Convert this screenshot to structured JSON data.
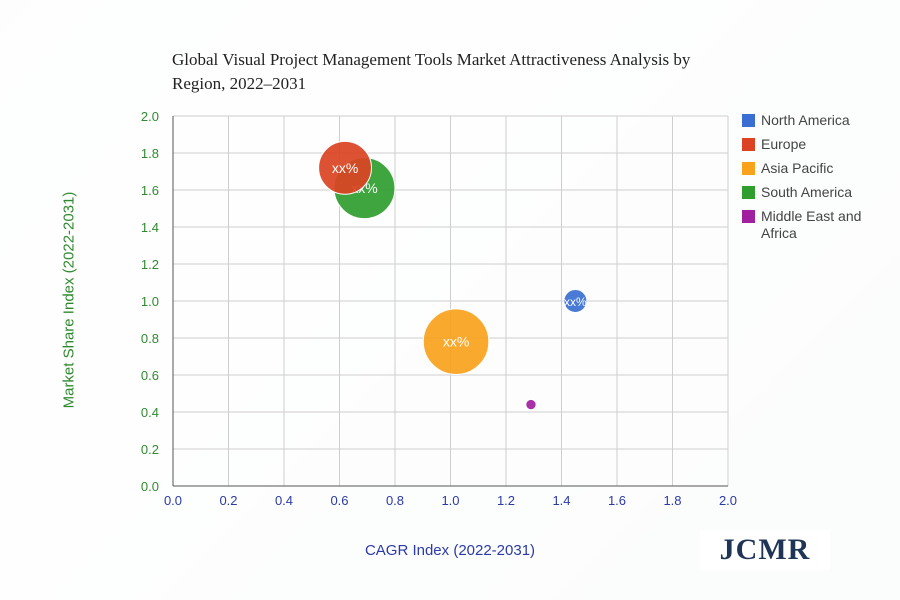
{
  "chart_data": {
    "type": "bubble",
    "title": "Global Visual Project Management Tools Market Attractiveness Analysis by Region, 2022–2031",
    "xlabel": "CAGR Index (2022-2031)",
    "ylabel": "Market Share Index (2022-2031)",
    "xlim": [
      0,
      2
    ],
    "ylim": [
      0,
      2
    ],
    "xticks": [
      "0.0",
      "0.2",
      "0.4",
      "0.6",
      "0.8",
      "1.0",
      "1.2",
      "1.4",
      "1.6",
      "1.8",
      "2.0"
    ],
    "yticks": [
      "0.0",
      "0.2",
      "0.4",
      "0.6",
      "0.8",
      "1.0",
      "1.2",
      "1.4",
      "1.6",
      "1.8",
      "2.0"
    ],
    "grid": true,
    "legend_position": "right",
    "series": [
      {
        "name": "North America",
        "color": "#3a6fd1",
        "x": 1.45,
        "y": 1.0,
        "size": 1.0,
        "label": "xx%"
      },
      {
        "name": "Europe",
        "color": "#db4323",
        "x": 0.62,
        "y": 1.72,
        "size": 2.3,
        "label": "xx%"
      },
      {
        "name": "Asia Pacific",
        "color": "#f9a21b",
        "x": 1.02,
        "y": 0.78,
        "size": 2.85,
        "label": "xx%"
      },
      {
        "name": "South America",
        "color": "#2f9e2f",
        "x": 0.69,
        "y": 1.61,
        "size": 2.65,
        "label": "xx%"
      },
      {
        "name": "Middle East and Africa",
        "color": "#a020a0",
        "x": 1.29,
        "y": 0.44,
        "size": 0.45,
        "label": ""
      }
    ]
  },
  "brand": {
    "logo_text": "JCMR"
  }
}
